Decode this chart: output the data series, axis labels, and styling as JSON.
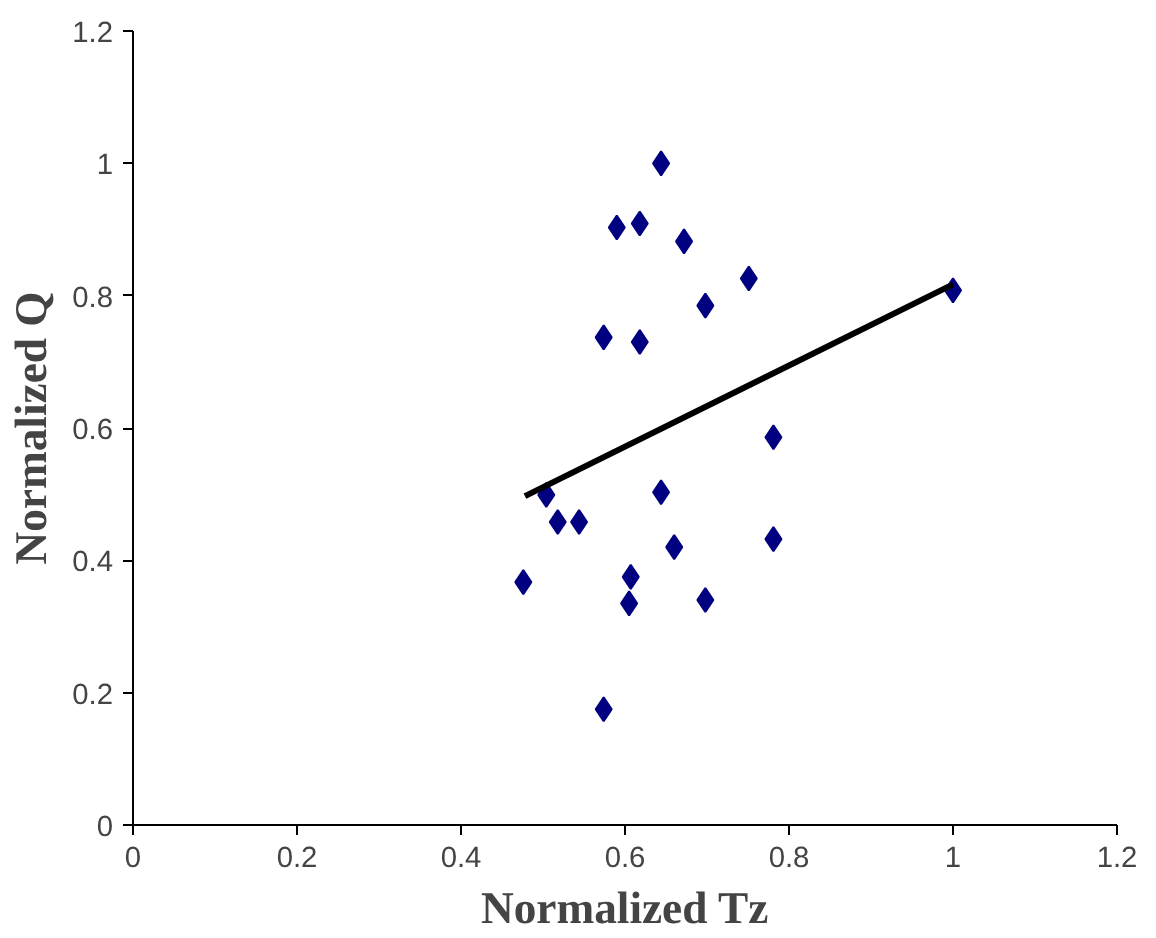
{
  "chart_data": {
    "type": "scatter",
    "xlabel": "Normalized Tz",
    "ylabel": "Normalized Q",
    "xlim": [
      0,
      1.2
    ],
    "ylim": [
      0,
      1.2
    ],
    "xticks": [
      0,
      0.2,
      0.4,
      0.6,
      0.8,
      1,
      1.2
    ],
    "yticks": [
      0,
      0.2,
      0.4,
      0.6,
      0.8,
      1,
      1.2
    ],
    "marker": "diamond",
    "series": [
      {
        "color": "#000080",
        "x": [
          0.644,
          0.59,
          0.618,
          0.672,
          0.751,
          0.698,
          0.574,
          0.618,
          1.0,
          0.781,
          0.504,
          0.644,
          0.518,
          0.544,
          0.66,
          0.781,
          0.476,
          0.607,
          0.605,
          0.698,
          0.574
        ],
        "values": [
          1.0,
          0.903,
          0.909,
          0.882,
          0.826,
          0.785,
          0.737,
          0.73,
          0.808,
          0.586,
          0.499,
          0.503,
          0.458,
          0.458,
          0.42,
          0.432,
          0.367,
          0.375,
          0.335,
          0.34,
          0.175
        ]
      },
      {
        "type": "line",
        "color": "#000000",
        "line_style": "solid",
        "marker": "none",
        "x": [
          0.478,
          1.0
        ],
        "values": [
          0.497,
          0.817
        ]
      }
    ]
  }
}
